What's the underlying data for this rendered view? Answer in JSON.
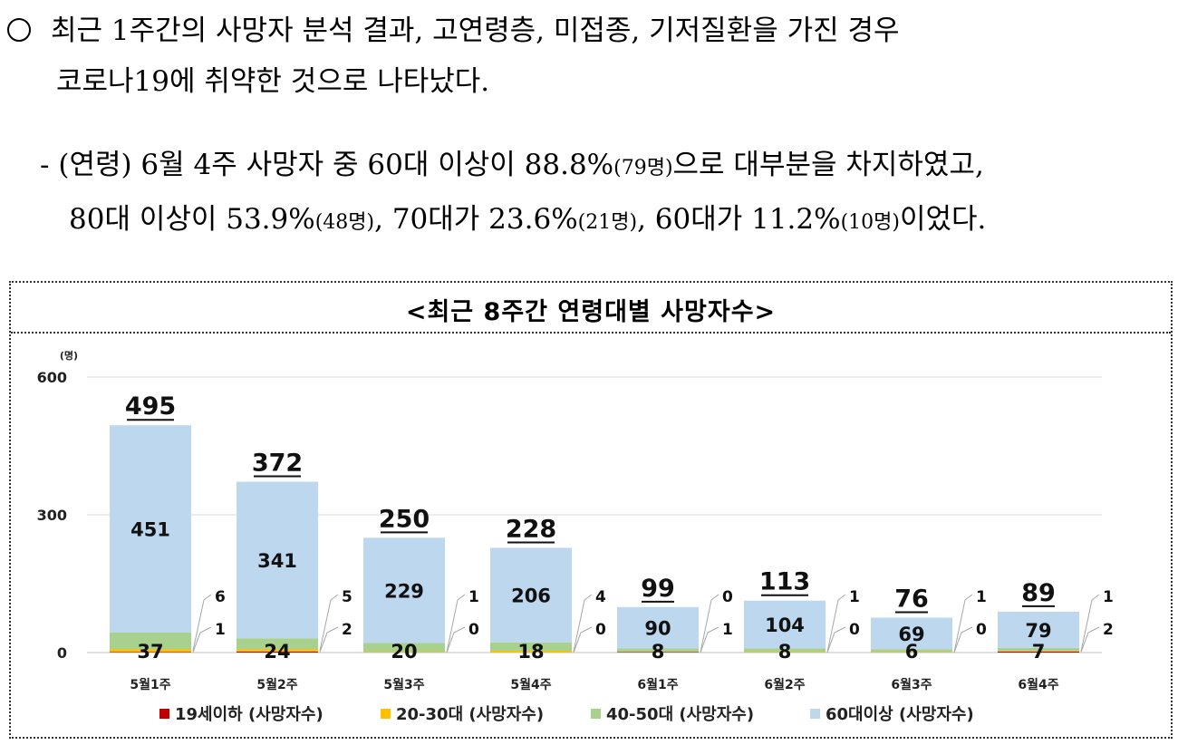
{
  "paragraph1": {
    "line1": "최근 1주간의 사망자 분석 결과, 고연령층, 미접종, 기저질환을 가진 경우",
    "line2": "코로나19에 취약한 것으로 나타났다."
  },
  "paragraph2": {
    "dash": "-",
    "l1a": "(연령) 6월 4주 사망자 중 60대 이상이 88.8%",
    "l1b": "(79명)",
    "l1c": "으로 대부분을 차지하였고,",
    "l2a": "80대 이상이 53.9%",
    "l2b": "(48명)",
    "l2c": ", 70대가 23.6%",
    "l2d": "(21명)",
    "l2e": ", 60대가 11.2%",
    "l2f": "(10명)",
    "l2g": "이었다."
  },
  "chart_data": {
    "type": "bar",
    "stacked": true,
    "title": "<최근 8주간 연령대별 사망자수>",
    "y_unit": "(명)",
    "ylim": [
      0,
      600
    ],
    "yticks": [
      0,
      300,
      600
    ],
    "grid": true,
    "legend_position": "bottom",
    "categories": [
      "5월1주",
      "5월2주",
      "5월3주",
      "5월4주",
      "6월1주",
      "6월2주",
      "6월3주",
      "6월4주"
    ],
    "series": [
      {
        "name": "19세이하 (사망자수)",
        "color": "#c00000",
        "values": [
          1,
          2,
          0,
          0,
          1,
          0,
          0,
          2
        ]
      },
      {
        "name": "20-30대 (사망자수)",
        "color": "#ffc000",
        "values": [
          6,
          5,
          1,
          4,
          0,
          1,
          1,
          1
        ]
      },
      {
        "name": "40-50대 (사망자수)",
        "color": "#a9d18e",
        "values": [
          37,
          24,
          20,
          18,
          8,
          8,
          6,
          7
        ]
      },
      {
        "name": "60대이상 (사망자수)",
        "color": "#bdd7ee",
        "values": [
          451,
          341,
          229,
          206,
          90,
          104,
          69,
          79
        ]
      }
    ],
    "totals": [
      495,
      372,
      250,
      228,
      99,
      113,
      76,
      89
    ]
  }
}
